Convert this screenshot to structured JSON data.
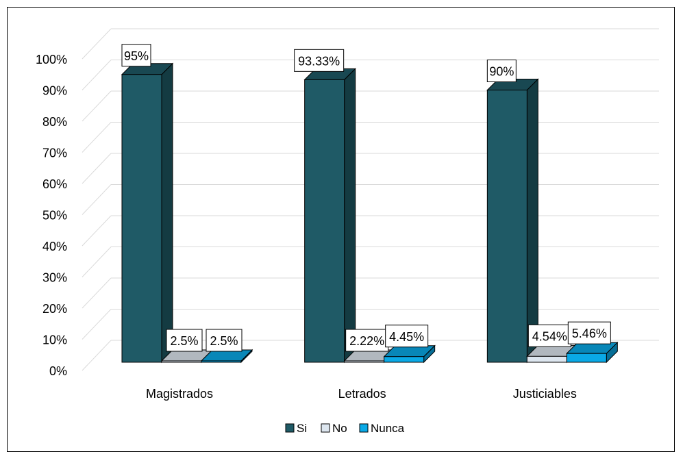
{
  "chart_data": {
    "type": "bar",
    "subtype": "3d-clustered-column",
    "title": "",
    "xlabel": "",
    "ylabel": "",
    "categories": [
      "Magistrados",
      "Letrados",
      "Justiciables"
    ],
    "series": [
      {
        "name": "Si",
        "values": [
          95,
          93.33,
          90
        ],
        "color": "#1f5a66"
      },
      {
        "name": "No",
        "values": [
          2.5,
          2.22,
          4.54
        ],
        "color": "#dde6ef"
      },
      {
        "name": "Nunca",
        "values": [
          2.5,
          4.45,
          5.46
        ],
        "color": "#0aa9e6"
      }
    ],
    "data_labels": [
      [
        "95%",
        "93.33%",
        "90%"
      ],
      [
        "2.5%",
        "2.22%",
        "4.54%"
      ],
      [
        "2.5%",
        "4.45%",
        "5.46%"
      ]
    ],
    "ylim": [
      0,
      100
    ],
    "yticks": [
      "0%",
      "10%",
      "20%",
      "30%",
      "40%",
      "50%",
      "60%",
      "70%",
      "80%",
      "90%",
      "100%"
    ],
    "grid": true,
    "legend_position": "bottom"
  }
}
